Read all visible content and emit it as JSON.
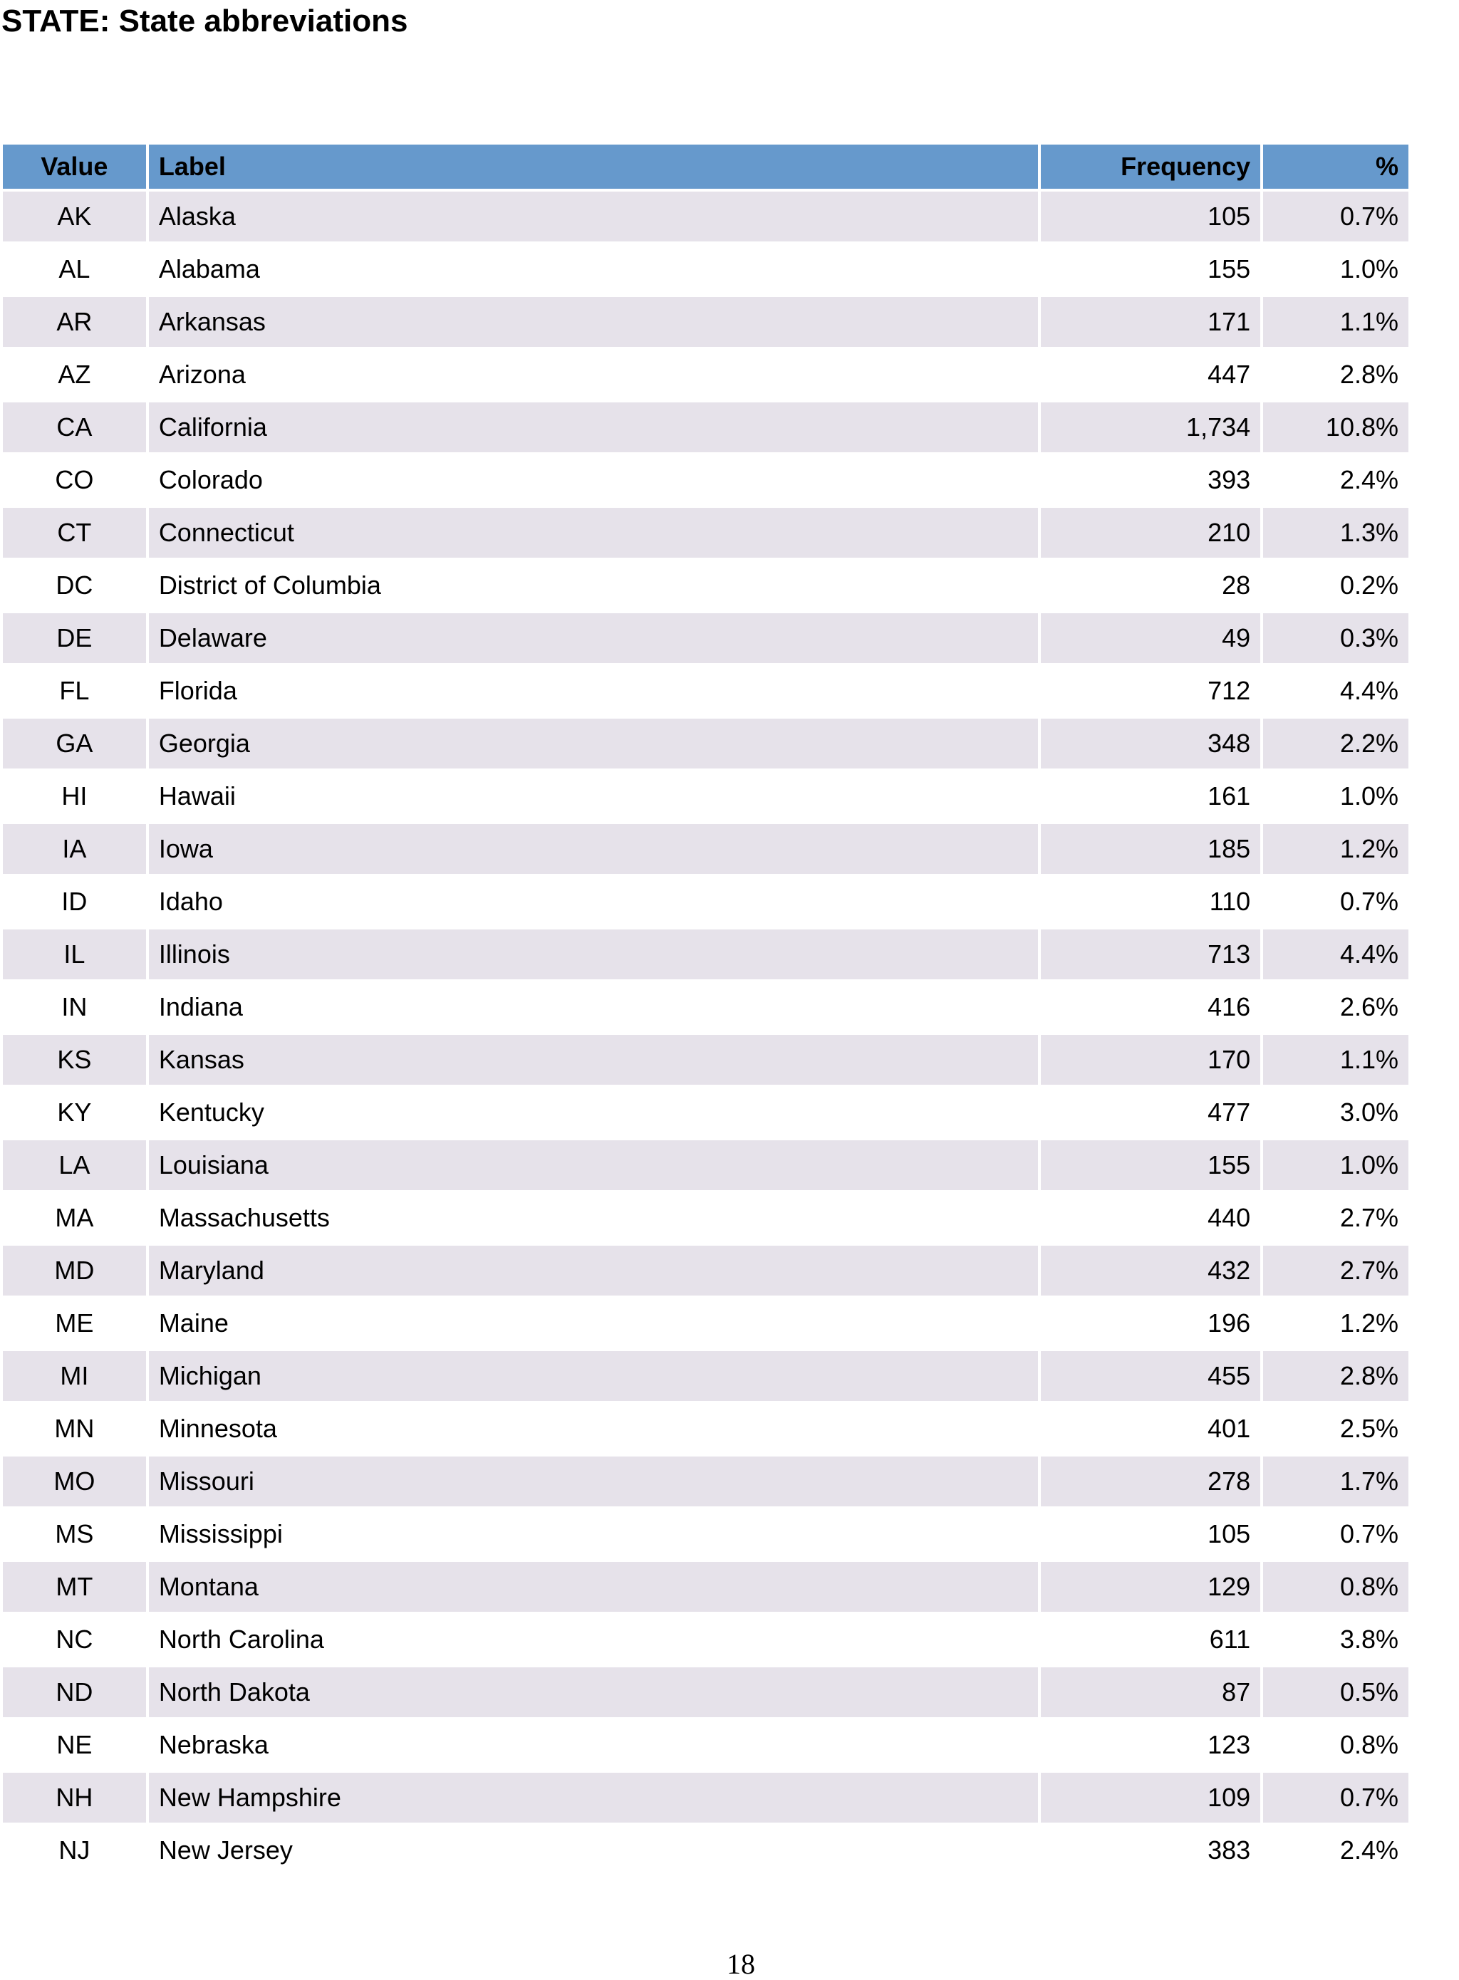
{
  "title": "STATE: State abbreviations",
  "table": {
    "columns": {
      "value": "Value",
      "label": "Label",
      "frequency": "Frequency",
      "percent": "%"
    },
    "rows": [
      {
        "value": "AK",
        "label": "Alaska",
        "frequency": "105",
        "percent": "0.7%"
      },
      {
        "value": "AL",
        "label": "Alabama",
        "frequency": "155",
        "percent": "1.0%"
      },
      {
        "value": "AR",
        "label": "Arkansas",
        "frequency": "171",
        "percent": "1.1%"
      },
      {
        "value": "AZ",
        "label": "Arizona",
        "frequency": "447",
        "percent": "2.8%"
      },
      {
        "value": "CA",
        "label": "California",
        "frequency": "1,734",
        "percent": "10.8%"
      },
      {
        "value": "CO",
        "label": "Colorado",
        "frequency": "393",
        "percent": "2.4%"
      },
      {
        "value": "CT",
        "label": "Connecticut",
        "frequency": "210",
        "percent": "1.3%"
      },
      {
        "value": "DC",
        "label": "District of Columbia",
        "frequency": "28",
        "percent": "0.2%"
      },
      {
        "value": "DE",
        "label": "Delaware",
        "frequency": "49",
        "percent": "0.3%"
      },
      {
        "value": "FL",
        "label": "Florida",
        "frequency": "712",
        "percent": "4.4%"
      },
      {
        "value": "GA",
        "label": "Georgia",
        "frequency": "348",
        "percent": "2.2%"
      },
      {
        "value": "HI",
        "label": "Hawaii",
        "frequency": "161",
        "percent": "1.0%"
      },
      {
        "value": "IA",
        "label": "Iowa",
        "frequency": "185",
        "percent": "1.2%"
      },
      {
        "value": "ID",
        "label": "Idaho",
        "frequency": "110",
        "percent": "0.7%"
      },
      {
        "value": "IL",
        "label": "Illinois",
        "frequency": "713",
        "percent": "4.4%"
      },
      {
        "value": "IN",
        "label": "Indiana",
        "frequency": "416",
        "percent": "2.6%"
      },
      {
        "value": "KS",
        "label": "Kansas",
        "frequency": "170",
        "percent": "1.1%"
      },
      {
        "value": "KY",
        "label": "Kentucky",
        "frequency": "477",
        "percent": "3.0%"
      },
      {
        "value": "LA",
        "label": "Louisiana",
        "frequency": "155",
        "percent": "1.0%"
      },
      {
        "value": "MA",
        "label": "Massachusetts",
        "frequency": "440",
        "percent": "2.7%"
      },
      {
        "value": "MD",
        "label": "Maryland",
        "frequency": "432",
        "percent": "2.7%"
      },
      {
        "value": "ME",
        "label": "Maine",
        "frequency": "196",
        "percent": "1.2%"
      },
      {
        "value": "MI",
        "label": "Michigan",
        "frequency": "455",
        "percent": "2.8%"
      },
      {
        "value": "MN",
        "label": "Minnesota",
        "frequency": "401",
        "percent": "2.5%"
      },
      {
        "value": "MO",
        "label": "Missouri",
        "frequency": "278",
        "percent": "1.7%"
      },
      {
        "value": "MS",
        "label": "Mississippi",
        "frequency": "105",
        "percent": "0.7%"
      },
      {
        "value": "MT",
        "label": "Montana",
        "frequency": "129",
        "percent": "0.8%"
      },
      {
        "value": "NC",
        "label": "North Carolina",
        "frequency": "611",
        "percent": "3.8%"
      },
      {
        "value": "ND",
        "label": "North Dakota",
        "frequency": "87",
        "percent": "0.5%"
      },
      {
        "value": "NE",
        "label": "Nebraska",
        "frequency": "123",
        "percent": "0.8%"
      },
      {
        "value": "NH",
        "label": "New Hampshire",
        "frequency": "109",
        "percent": "0.7%"
      },
      {
        "value": "NJ",
        "label": "New Jersey",
        "frequency": "383",
        "percent": "2.4%"
      }
    ]
  },
  "page_number": "18",
  "colors": {
    "header_background": "#6699cc",
    "shaded_row_background": "#e6e2ea",
    "plain_row_background": "#ffffff"
  }
}
